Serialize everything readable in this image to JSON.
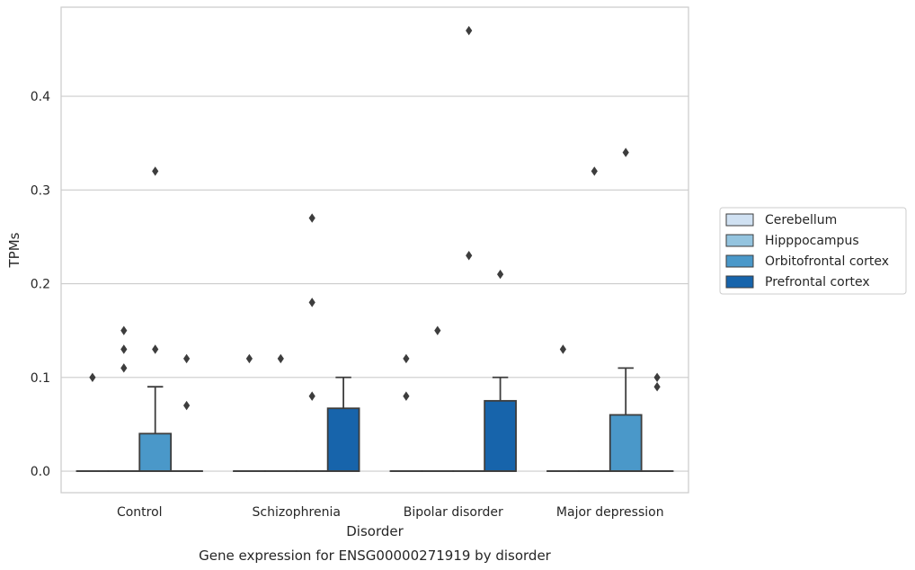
{
  "chart_data": {
    "type": "box",
    "caption": "Gene expression for ENSG00000271919 by disorder",
    "xlabel": "Disorder",
    "ylabel": "TPMs",
    "ylim": [
      -0.023,
      0.495
    ],
    "yticks": [
      0.0,
      0.1,
      0.2,
      0.3,
      0.4
    ],
    "ytick_labels": [
      "0.0",
      "0.1",
      "0.2",
      "0.3",
      "0.4"
    ],
    "grid": "horizontal",
    "legend_position": "right",
    "categories": [
      "Control",
      "Schizophrenia",
      "Bipolar disorder",
      "Major depression"
    ],
    "series": [
      {
        "name": "Cerebellum",
        "color": "#d0e1f2",
        "boxes": [
          {
            "q1": 0,
            "median": 0,
            "q3": 0,
            "whisker_low": 0,
            "whisker_high": 0,
            "outliers": [
              0.1
            ]
          },
          {
            "q1": 0,
            "median": 0,
            "q3": 0,
            "whisker_low": 0,
            "whisker_high": 0,
            "outliers": [
              0.12
            ]
          },
          {
            "q1": 0,
            "median": 0,
            "q3": 0,
            "whisker_low": 0,
            "whisker_high": 0,
            "outliers": [
              0.12,
              0.08
            ]
          },
          {
            "q1": 0,
            "median": 0,
            "q3": 0,
            "whisker_low": 0,
            "whisker_high": 0,
            "outliers": [
              0.13
            ]
          }
        ]
      },
      {
        "name": "Hipppocampus",
        "color": "#94c4df",
        "boxes": [
          {
            "q1": 0,
            "median": 0,
            "q3": 0,
            "whisker_low": 0,
            "whisker_high": 0,
            "outliers": [
              0.15,
              0.13,
              0.11
            ]
          },
          {
            "q1": 0,
            "median": 0,
            "q3": 0,
            "whisker_low": 0,
            "whisker_high": 0,
            "outliers": [
              0.12
            ]
          },
          {
            "q1": 0,
            "median": 0,
            "q3": 0,
            "whisker_low": 0,
            "whisker_high": 0,
            "outliers": [
              0.15
            ]
          },
          {
            "q1": 0,
            "median": 0,
            "q3": 0,
            "whisker_low": 0,
            "whisker_high": 0,
            "outliers": [
              0.32
            ]
          }
        ]
      },
      {
        "name": "Orbitofrontal cortex",
        "color": "#4a98c9",
        "boxes": [
          {
            "q1": 0,
            "median": 0,
            "q3": 0.04,
            "whisker_low": 0,
            "whisker_high": 0.09,
            "outliers": [
              0.32,
              0.13
            ]
          },
          {
            "q1": 0,
            "median": 0,
            "q3": 0,
            "whisker_low": 0,
            "whisker_high": 0,
            "outliers": [
              0.27,
              0.18,
              0.08
            ]
          },
          {
            "q1": 0,
            "median": 0,
            "q3": 0,
            "whisker_low": 0,
            "whisker_high": 0,
            "outliers": [
              0.47,
              0.23
            ]
          },
          {
            "q1": 0,
            "median": 0,
            "q3": 0.06,
            "whisker_low": 0,
            "whisker_high": 0.11,
            "outliers": [
              0.34
            ]
          }
        ]
      },
      {
        "name": "Prefrontal cortex",
        "color": "#1764ab",
        "boxes": [
          {
            "q1": 0,
            "median": 0,
            "q3": 0,
            "whisker_low": 0,
            "whisker_high": 0,
            "outliers": [
              0.12,
              0.07
            ]
          },
          {
            "q1": 0,
            "median": 0,
            "q3": 0.067,
            "whisker_low": 0,
            "whisker_high": 0.1,
            "outliers": []
          },
          {
            "q1": 0,
            "median": 0,
            "q3": 0.075,
            "whisker_low": 0,
            "whisker_high": 0.1,
            "outliers": [
              0.21
            ]
          },
          {
            "q1": 0,
            "median": 0,
            "q3": 0,
            "whisker_low": 0,
            "whisker_high": 0,
            "outliers": [
              0.1,
              0.09
            ]
          }
        ]
      }
    ]
  }
}
